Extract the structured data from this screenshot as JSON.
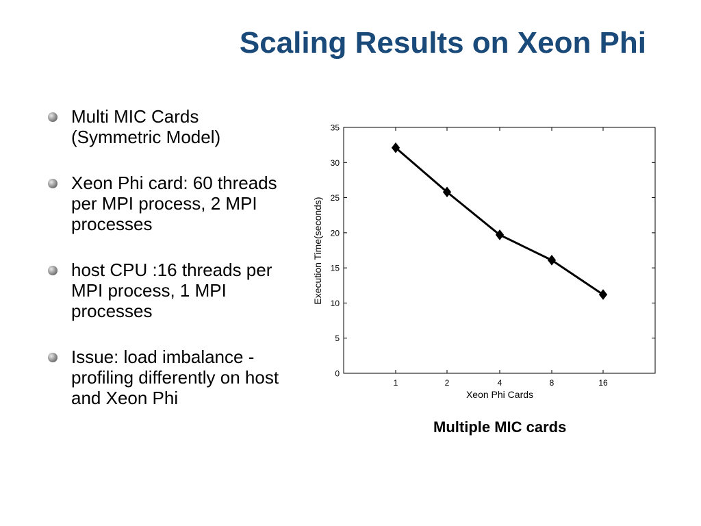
{
  "slide": {
    "title": "Scaling Results on Xeon Phi",
    "bullets": [
      "Multi MIC Cards (Symmetric Model)",
      "Xeon Phi card: 60 threads per MPI process,   2 MPI processes",
      "host CPU :16 threads per MPI process,   1 MPI processes",
      "Issue:  load imbalance -  profiling differently on host and Xeon Phi"
    ],
    "chart_caption": "Multiple MIC cards"
  },
  "chart_data": {
    "type": "line",
    "categories": [
      "1",
      "2",
      "4",
      "8",
      "16"
    ],
    "series": [
      {
        "values": [
          32.1,
          25.8,
          19.7,
          16.1,
          11.2
        ]
      }
    ],
    "xlabel": "Xeon Phi Cards",
    "ylabel": "Execution Time(seconds)",
    "ylim": [
      0,
      35
    ],
    "yticks": [
      0,
      5,
      10,
      15,
      20,
      25,
      30,
      35
    ],
    "marker": "diamond",
    "line_color": "#000000",
    "grid": false
  }
}
